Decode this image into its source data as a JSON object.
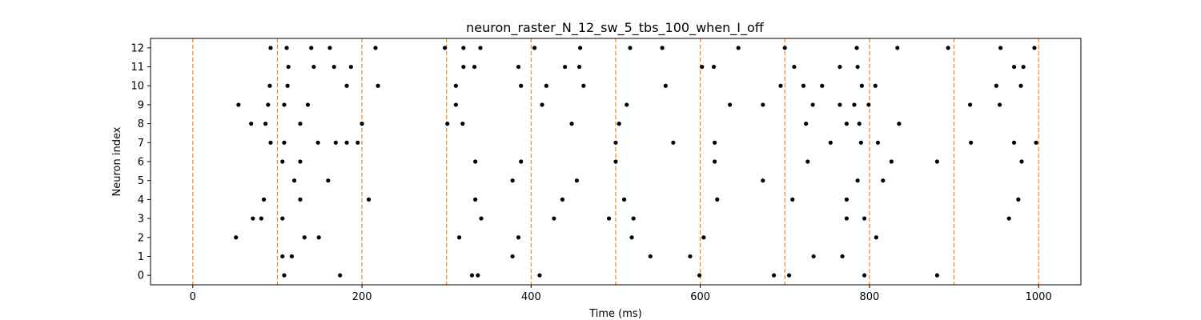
{
  "chart_data": {
    "type": "scatter",
    "title": "neuron_raster_N_12_sw_5_tbs_100_when_I_off",
    "xlabel": "Time (ms)",
    "ylabel": "Neuron index",
    "xlim": [
      -50,
      1050
    ],
    "ylim": [
      -0.5,
      12.5
    ],
    "xticks": [
      0,
      200,
      400,
      600,
      800,
      1000
    ],
    "yticks": [
      0,
      1,
      2,
      3,
      4,
      5,
      6,
      7,
      8,
      9,
      10,
      11,
      12
    ],
    "grid": false,
    "marker_color": "#000000",
    "vline_color": "#ff7f0e",
    "vline_style": "dashed",
    "vlines": [
      0,
      100,
      200,
      300,
      400,
      500,
      600,
      700,
      800,
      900,
      1000
    ],
    "series": [
      {
        "neuron": 12,
        "times": [
          92,
          111,
          140,
          162,
          216,
          298,
          320,
          340,
          404,
          458,
          517,
          555,
          645,
          700,
          785,
          833,
          893,
          955,
          995
        ]
      },
      {
        "neuron": 11,
        "times": [
          113,
          143,
          167,
          187,
          320,
          333,
          385,
          440,
          457,
          602,
          616,
          711,
          765,
          786,
          971,
          982
        ]
      },
      {
        "neuron": 10,
        "times": [
          91,
          112,
          182,
          219,
          311,
          388,
          418,
          462,
          559,
          695,
          722,
          744,
          791,
          807,
          950,
          979
        ]
      },
      {
        "neuron": 9,
        "times": [
          54,
          89,
          108,
          136,
          311,
          413,
          513,
          635,
          674,
          733,
          765,
          782,
          799,
          919,
          954
        ]
      },
      {
        "neuron": 8,
        "times": [
          69,
          86,
          127,
          200,
          301,
          319,
          448,
          504,
          725,
          773,
          788,
          835
        ]
      },
      {
        "neuron": 7,
        "times": [
          92,
          108,
          148,
          169,
          182,
          195,
          500,
          568,
          617,
          754,
          790,
          810,
          920,
          971,
          997
        ]
      },
      {
        "neuron": 6,
        "times": [
          106,
          127,
          334,
          388,
          500,
          617,
          727,
          826,
          880,
          980
        ]
      },
      {
        "neuron": 5,
        "times": [
          120,
          160,
          378,
          454,
          674,
          786,
          816
        ]
      },
      {
        "neuron": 4,
        "times": [
          84,
          127,
          208,
          334,
          437,
          510,
          620,
          709,
          773,
          976
        ]
      },
      {
        "neuron": 3,
        "times": [
          71,
          81,
          106,
          341,
          427,
          492,
          521,
          773,
          794,
          965
        ]
      },
      {
        "neuron": 2,
        "times": [
          51,
          132,
          149,
          315,
          385,
          519,
          604,
          808
        ]
      },
      {
        "neuron": 1,
        "times": [
          106,
          117,
          378,
          541,
          588,
          734,
          768
        ]
      },
      {
        "neuron": 0,
        "times": [
          108,
          174,
          330,
          337,
          410,
          599,
          687,
          705,
          794,
          880
        ]
      }
    ]
  }
}
